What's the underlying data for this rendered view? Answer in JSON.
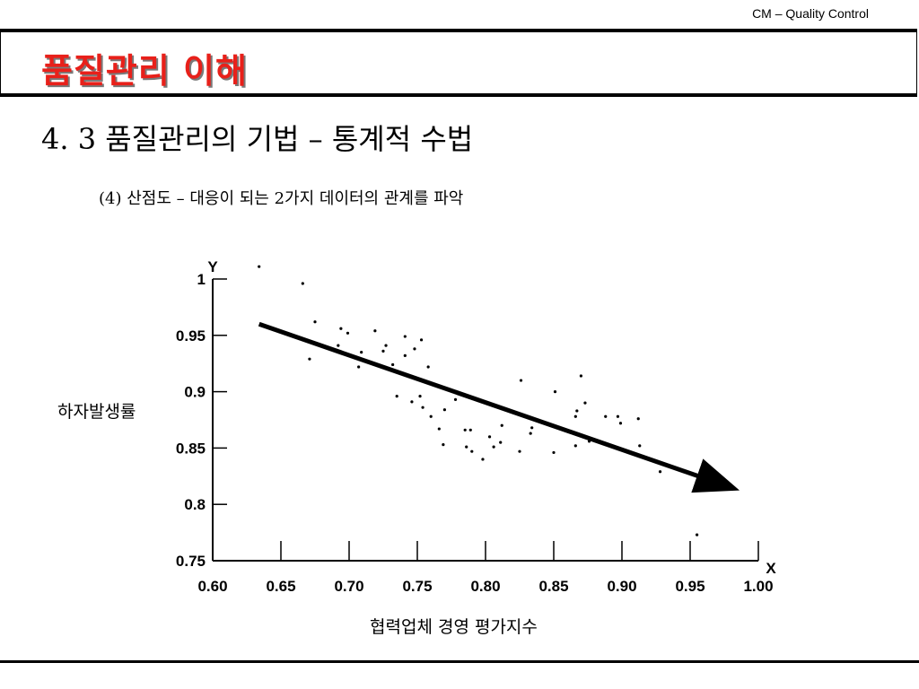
{
  "header": {
    "label": "CM – Quality Control"
  },
  "title": "품질관리 이해",
  "section_title": "4. 3 품질관리의 기법 – 통계적 수법",
  "subtitle": "(4) 산점도 – 대응이 되는 2가지 데이터의 관계를 파악",
  "colors": {
    "title": "#e8201a",
    "axis": "#000000"
  },
  "chart_data": {
    "type": "scatter",
    "xlabel": "협력업체 경영 평가지수",
    "ylabel": "하자발생률",
    "x_axis_letter": "X",
    "y_axis_letter": "Y",
    "xlim": [
      0.6,
      1.0
    ],
    "ylim": [
      0.75,
      1.0
    ],
    "x_ticks": [
      "0.60",
      "0.65",
      "0.70",
      "0.75",
      "0.80",
      "0.85",
      "0.90",
      "0.95",
      "1.00"
    ],
    "y_ticks": [
      "0.75",
      "0.8",
      "0.85",
      "0.9",
      "0.95",
      "1"
    ],
    "grid": false,
    "points": [
      [
        0.634,
        1.011
      ],
      [
        0.666,
        0.996
      ],
      [
        0.671,
        0.929
      ],
      [
        0.675,
        0.962
      ],
      [
        0.694,
        0.956
      ],
      [
        0.699,
        0.952
      ],
      [
        0.692,
        0.941
      ],
      [
        0.709,
        0.935
      ],
      [
        0.707,
        0.922
      ],
      [
        0.719,
        0.954
      ],
      [
        0.727,
        0.941
      ],
      [
        0.725,
        0.936
      ],
      [
        0.732,
        0.924
      ],
      [
        0.741,
        0.949
      ],
      [
        0.748,
        0.938
      ],
      [
        0.741,
        0.932
      ],
      [
        0.753,
        0.946
      ],
      [
        0.758,
        0.922
      ],
      [
        0.735,
        0.896
      ],
      [
        0.746,
        0.891
      ],
      [
        0.752,
        0.896
      ],
      [
        0.754,
        0.886
      ],
      [
        0.76,
        0.878
      ],
      [
        0.766,
        0.867
      ],
      [
        0.77,
        0.884
      ],
      [
        0.778,
        0.893
      ],
      [
        0.769,
        0.853
      ],
      [
        0.785,
        0.866
      ],
      [
        0.789,
        0.866
      ],
      [
        0.786,
        0.851
      ],
      [
        0.79,
        0.847
      ],
      [
        0.798,
        0.84
      ],
      [
        0.803,
        0.86
      ],
      [
        0.806,
        0.851
      ],
      [
        0.811,
        0.855
      ],
      [
        0.812,
        0.87
      ],
      [
        0.826,
        0.91
      ],
      [
        0.825,
        0.847
      ],
      [
        0.834,
        0.868
      ],
      [
        0.833,
        0.863
      ],
      [
        0.845,
        0.872
      ],
      [
        0.851,
        0.9
      ],
      [
        0.85,
        0.846
      ],
      [
        0.866,
        0.878
      ],
      [
        0.867,
        0.883
      ],
      [
        0.87,
        0.914
      ],
      [
        0.873,
        0.89
      ],
      [
        0.866,
        0.852
      ],
      [
        0.876,
        0.856
      ],
      [
        0.888,
        0.878
      ],
      [
        0.897,
        0.878
      ],
      [
        0.899,
        0.872
      ],
      [
        0.912,
        0.876
      ],
      [
        0.913,
        0.852
      ],
      [
        0.928,
        0.829
      ],
      [
        0.955,
        0.773
      ]
    ],
    "trend_line": {
      "from": [
        0.634,
        0.96
      ],
      "to": [
        0.98,
        0.815
      ],
      "arrow": true
    }
  }
}
